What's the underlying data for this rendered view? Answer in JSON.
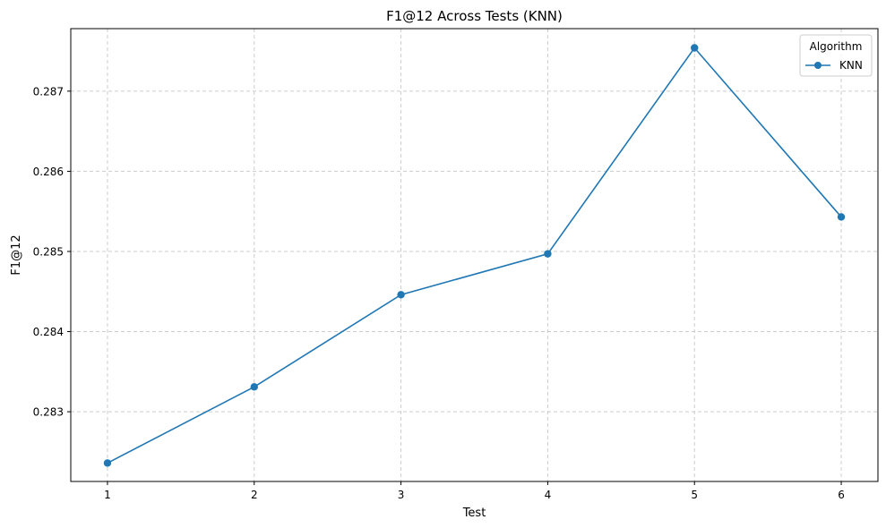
{
  "chart_data": {
    "type": "line",
    "title": "F1@12 Across Tests (KNN)",
    "xlabel": "Test",
    "ylabel": "F1@12",
    "x": [
      1,
      2,
      3,
      4,
      5,
      6
    ],
    "x_ticks": [
      "1",
      "2",
      "3",
      "4",
      "5",
      "6"
    ],
    "xlim": [
      0.75,
      6.25
    ],
    "y_ticks": [
      "0.283",
      "0.284",
      "0.285",
      "0.286",
      "0.287"
    ],
    "y_tick_values": [
      0.283,
      0.284,
      0.285,
      0.286,
      0.287
    ],
    "ylim": [
      0.28213,
      0.28778
    ],
    "series": [
      {
        "name": "KNN",
        "color": "#1f77b4",
        "marker": "circle",
        "values": [
          0.28236,
          0.28331,
          0.28446,
          0.28497,
          0.28754,
          0.28543
        ]
      }
    ],
    "grid": true,
    "legend": {
      "title": "Algorithm",
      "position": "top-right"
    }
  }
}
